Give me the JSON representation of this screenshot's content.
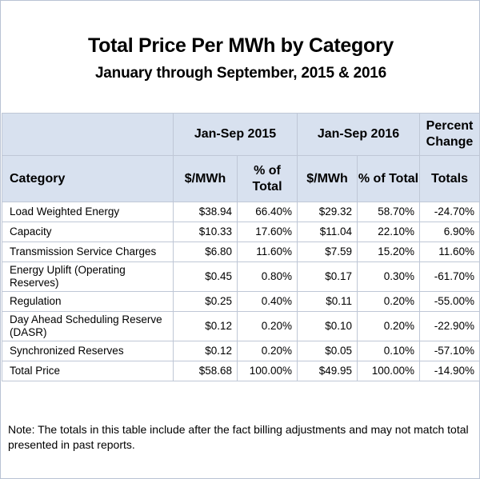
{
  "title": "Total Price Per MWh by Category",
  "subtitle": "January through September, 2015 & 2016",
  "header": {
    "group_2015": "Jan-Sep 2015",
    "group_2016": "Jan-Sep 2016",
    "percent_change": "Percent Change",
    "category": "Category",
    "mwh_2015": "$/MWh",
    "pct_2015": "% of Total",
    "mwh_2016": "$/MWh",
    "pct_2016": "% of Total",
    "totals": "Totals"
  },
  "rows": [
    {
      "category": "Load Weighted Energy",
      "mwh_2015": "$38.94",
      "pct_2015": "66.40%",
      "mwh_2016": "$29.32",
      "pct_2016": "58.70%",
      "totals": "-24.70%"
    },
    {
      "category": "Capacity",
      "mwh_2015": "$10.33",
      "pct_2015": "17.60%",
      "mwh_2016": "$11.04",
      "pct_2016": "22.10%",
      "totals": "6.90%"
    },
    {
      "category": "Transmission Service Charges",
      "mwh_2015": "$6.80",
      "pct_2015": "11.60%",
      "mwh_2016": "$7.59",
      "pct_2016": "15.20%",
      "totals": "11.60%"
    },
    {
      "category": "Energy Uplift (Operating Reserves)",
      "mwh_2015": "$0.45",
      "pct_2015": "0.80%",
      "mwh_2016": "$0.17",
      "pct_2016": "0.30%",
      "totals": "-61.70%"
    },
    {
      "category": "Regulation",
      "mwh_2015": "$0.25",
      "pct_2015": "0.40%",
      "mwh_2016": "$0.11",
      "pct_2016": "0.20%",
      "totals": "-55.00%"
    },
    {
      "category": "Day Ahead Scheduling Reserve (DASR)",
      "mwh_2015": "$0.12",
      "pct_2015": "0.20%",
      "mwh_2016": "$0.10",
      "pct_2016": "0.20%",
      "totals": "-22.90%"
    },
    {
      "category": "Synchronized Reserves",
      "mwh_2015": "$0.12",
      "pct_2015": "0.20%",
      "mwh_2016": "$0.05",
      "pct_2016": "0.10%",
      "totals": "-57.10%"
    },
    {
      "category": "Total Price",
      "mwh_2015": "$58.68",
      "pct_2015": "100.00%",
      "mwh_2016": "$49.95",
      "pct_2016": "100.00%",
      "totals": "-14.90%"
    }
  ],
  "note": "Note: The totals in this table include after the fact billing adjustments and may not match total presented in past reports."
}
